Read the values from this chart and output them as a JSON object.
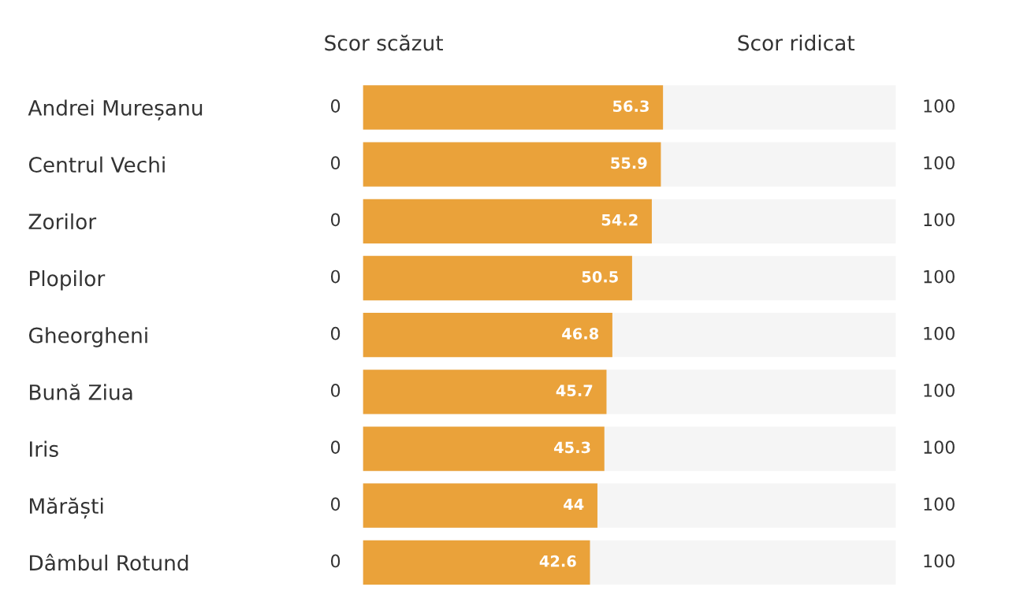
{
  "chart_data": {
    "type": "bar",
    "orientation": "horizontal",
    "categories": [
      "Andrei Mureșanu",
      "Centrul Vechi",
      "Zorilor",
      "Plopilor",
      "Gheorgheni",
      "Bună Ziua",
      "Iris",
      "Mărăști",
      "Dâmbul Rotund"
    ],
    "values": [
      56.3,
      55.9,
      54.2,
      50.5,
      46.8,
      45.7,
      45.3,
      44,
      42.6
    ],
    "color": "#eaa23a",
    "xlim": [
      0,
      100
    ],
    "annotations": [
      "Scor scăzut",
      "Scor ridicat",
      "0",
      "100",
      "0",
      "100",
      "0",
      "100",
      "0",
      "100",
      "0",
      "100",
      "0",
      "100",
      "0",
      "100",
      "0",
      "100",
      "0",
      "100"
    ],
    "data_labels": true,
    "grid": false
  }
}
